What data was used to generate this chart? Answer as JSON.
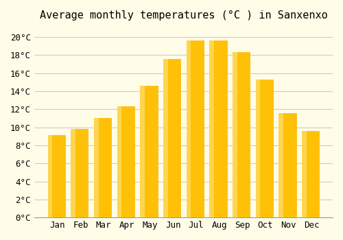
{
  "title": "Average monthly temperatures (°C ) in Sanxenxo",
  "months": [
    "Jan",
    "Feb",
    "Mar",
    "Apr",
    "May",
    "Jun",
    "Jul",
    "Aug",
    "Sep",
    "Oct",
    "Nov",
    "Dec"
  ],
  "values": [
    9.1,
    9.8,
    11.0,
    12.3,
    14.6,
    17.6,
    19.6,
    19.6,
    18.3,
    15.3,
    11.6,
    9.6
  ],
  "bar_color_main": "#FFC107",
  "bar_color_edge": "#FFB300",
  "bar_color_top": "#FFD54F",
  "background_color": "#FFFDE7",
  "grid_color": "#CCCCCC",
  "title_fontsize": 11,
  "tick_fontsize": 9,
  "ylim": [
    0,
    21
  ],
  "yticks": [
    0,
    2,
    4,
    6,
    8,
    10,
    12,
    14,
    16,
    18,
    20
  ]
}
